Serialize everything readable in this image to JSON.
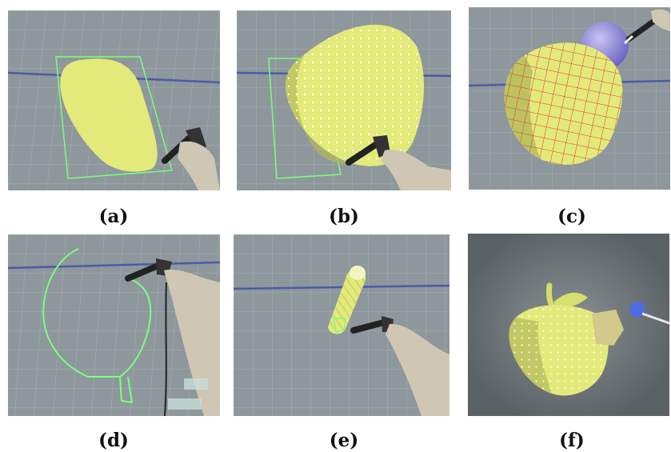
{
  "captions": {
    "a": "(a)",
    "b": "(b)",
    "c": "(c)",
    "d": "(d)",
    "e": "(e)",
    "f": "(f)"
  },
  "colors": {
    "surface_gray": "#8d979c",
    "grid_line": "#a9b2b6",
    "horizon_blue": "#4a5aa8",
    "model_yellow": "#e3ea7a",
    "model_shadow": "#b4b95a",
    "wireframe_green": "#7dff7d",
    "iso_red": "#d83a3a",
    "sphere_purple": "#8d86d8",
    "sleeve_beige": "#cfc7b4",
    "pen_black": "#222222",
    "background_dark": "#6b7378"
  },
  "icons": [
    "stylus-pen-icon",
    "hand-icon"
  ]
}
